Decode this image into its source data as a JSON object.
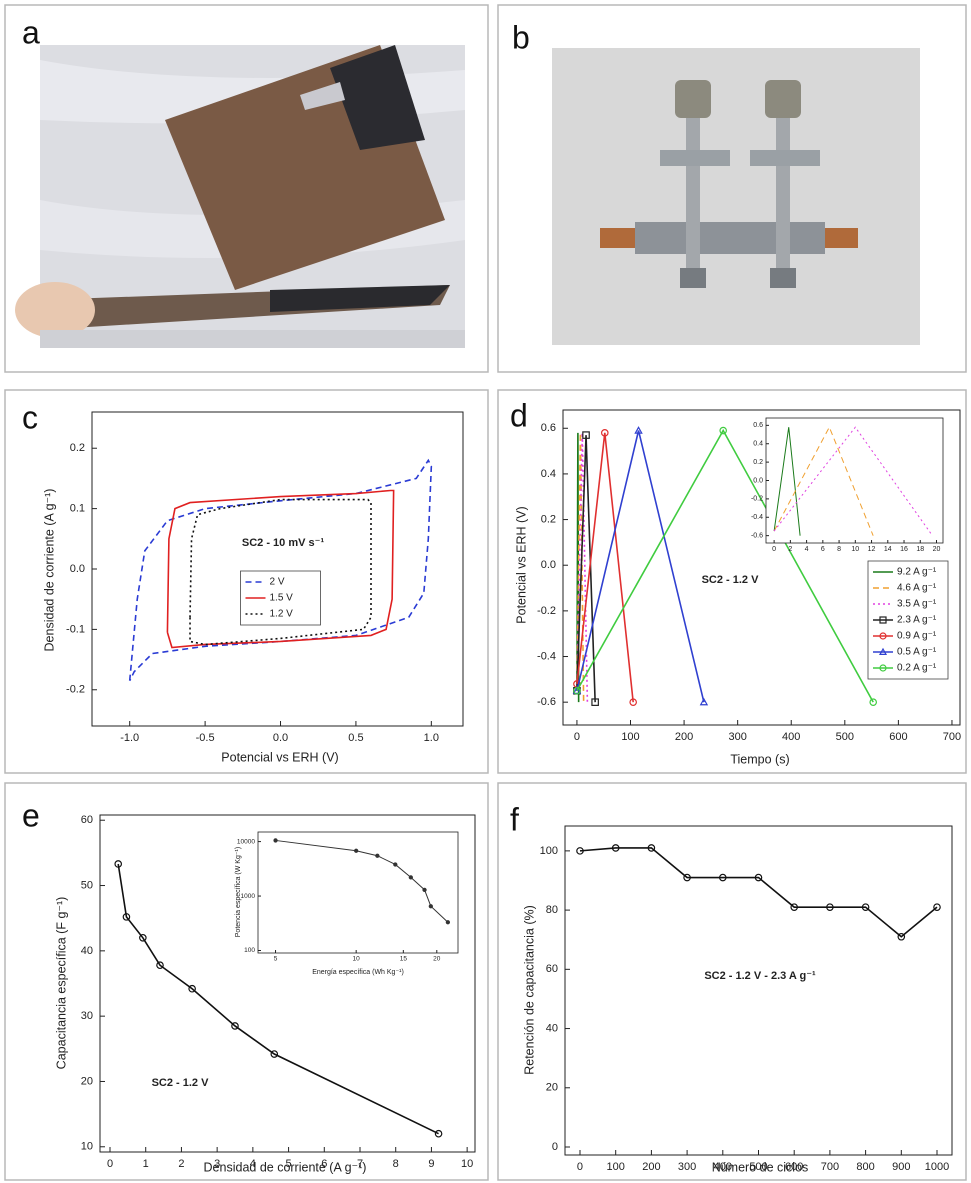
{
  "panel_labels": [
    "a",
    "b",
    "c",
    "d",
    "e",
    "f"
  ],
  "chart_data": [
    {
      "type": "line",
      "xlabel": "Potencial vs ERH (V)",
      "ylabel": "Densidad de corriente (A g⁻¹)",
      "annotation": "SC2 - 10 mV s⁻¹",
      "legend": "center",
      "xlim": [
        -1.25,
        1.21
      ],
      "ylim": [
        -0.26,
        0.26
      ],
      "xticks": [
        {
          "value": -1,
          "label": "-1.0"
        },
        -0.5,
        {
          "value": 0,
          "label": "0.0"
        },
        0.5,
        {
          "value": 1,
          "label": "1.0"
        }
      ],
      "yticks": [
        -0.2,
        -0.1,
        {
          "value": 0,
          "label": "0.0"
        },
        0.1,
        0.2
      ],
      "series": [
        {
          "name": "2 V",
          "color": "#2a3bd4",
          "linestyle": "dashed",
          "x": [
            -1.0,
            -0.95,
            -0.9,
            -0.75,
            -0.5,
            0,
            0.5,
            0.9,
            0.98,
            1.0,
            0.98,
            0.95,
            0.85,
            0.5,
            0,
            -0.5,
            -0.85,
            -0.97,
            -1.0
          ],
          "values": [
            -0.185,
            -0.05,
            0.03,
            0.08,
            0.1,
            0.113,
            0.125,
            0.15,
            0.18,
            0.17,
            0.05,
            -0.04,
            -0.08,
            -0.11,
            -0.12,
            -0.128,
            -0.14,
            -0.17,
            -0.185
          ]
        },
        {
          "name": "1.5 V",
          "color": "#e02020",
          "linestyle": "solid",
          "x": [
            -0.75,
            -0.74,
            -0.7,
            -0.6,
            0,
            0.5,
            0.73,
            0.75,
            0.74,
            0.7,
            0.6,
            0,
            -0.5,
            -0.72,
            -0.75
          ],
          "values": [
            -0.105,
            0.05,
            0.1,
            0.11,
            0.12,
            0.125,
            0.13,
            0.13,
            -0.05,
            -0.1,
            -0.11,
            -0.12,
            -0.125,
            -0.13,
            -0.105
          ]
        },
        {
          "name": "1.2 V",
          "color": "#111111",
          "linestyle": "dotted",
          "x": [
            -0.6,
            -0.59,
            -0.55,
            -0.4,
            0,
            0.58,
            0.6,
            0.6,
            0.55,
            0,
            -0.5,
            -0.6,
            -0.6
          ],
          "values": [
            -0.08,
            0.05,
            0.09,
            0.1,
            0.115,
            0.115,
            0.11,
            -0.08,
            -0.1,
            -0.115,
            -0.125,
            -0.12,
            -0.08
          ]
        }
      ]
    },
    {
      "type": "line",
      "xlabel": "Tiempo (s)",
      "ylabel": "Potencial vs ERH (V)",
      "annotation": "SC2 - 1.2 V",
      "legend": "lower right",
      "xlim": [
        -26,
        715
      ],
      "ylim": [
        -0.7,
        0.68
      ],
      "xticks": [
        0,
        100,
        200,
        300,
        400,
        500,
        600,
        700
      ],
      "yticks": [
        -0.6,
        -0.4,
        -0.2,
        {
          "value": 0,
          "label": "0.0"
        },
        0.2,
        0.4,
        0.6
      ],
      "series": [
        {
          "name": "9.2 A g⁻¹",
          "color": "#1a7a1a",
          "linestyle": "solid",
          "x": [
            0,
            1.8,
            3.2
          ],
          "values": [
            -0.55,
            0.58,
            -0.6
          ]
        },
        {
          "name": "4.6 A g⁻¹",
          "color": "#f0a030",
          "linestyle": "dashed",
          "x": [
            0,
            6.5,
            12.5
          ],
          "values": [
            -0.55,
            0.58,
            -0.6
          ]
        },
        {
          "name": "3.5 A g⁻¹",
          "color": "#e040e0",
          "linestyle": "dotted",
          "x": [
            0,
            10,
            19.5
          ],
          "values": [
            -0.55,
            0.58,
            -0.6
          ]
        },
        {
          "name": "2.3 A g⁻¹",
          "color": "#222222",
          "linestyle": "solid",
          "marker": "square",
          "x": [
            0,
            17,
            34
          ],
          "values": [
            -0.55,
            0.57,
            -0.6
          ]
        },
        {
          "name": "0.9 A g⁻¹",
          "color": "#e03030",
          "linestyle": "solid",
          "marker": "circle",
          "x": [
            0,
            52,
            105
          ],
          "values": [
            -0.52,
            0.58,
            -0.6
          ]
        },
        {
          "name": "0.5 A g⁻¹",
          "color": "#3040d0",
          "linestyle": "solid",
          "marker": "triangle",
          "x": [
            0,
            115,
            237
          ],
          "values": [
            -0.55,
            0.59,
            -0.6
          ]
        },
        {
          "name": "0.2 A g⁻¹",
          "color": "#40cc40",
          "linestyle": "solid",
          "marker": "circle",
          "x": [
            0,
            273,
            553
          ],
          "values": [
            -0.55,
            0.59,
            -0.6
          ]
        }
      ]
    },
    {
      "type": "line",
      "xlim": [
        -1,
        20.8
      ],
      "ylim": [
        -0.68,
        0.68
      ],
      "xticks": [
        0,
        2,
        4,
        6,
        8,
        10,
        12,
        14,
        16,
        18,
        20
      ],
      "yticks": [
        -0.6,
        -0.4,
        -0.2,
        {
          "value": 0,
          "label": "0.0"
        },
        0.2,
        0.4,
        0.6
      ],
      "series": [
        {
          "color": "#1a7a1a",
          "linestyle": "solid",
          "x": [
            0,
            1.8,
            3.2
          ],
          "values": [
            -0.55,
            0.58,
            -0.6
          ]
        },
        {
          "color": "#f0a030",
          "linestyle": "dashed",
          "x": [
            0,
            6.8,
            12.2
          ],
          "values": [
            -0.55,
            0.58,
            -0.6
          ]
        },
        {
          "color": "#e040e0",
          "linestyle": "dotted",
          "x": [
            0,
            10,
            19.5
          ],
          "values": [
            -0.55,
            0.58,
            -0.6
          ]
        }
      ]
    },
    {
      "type": "line",
      "xlabel": "Densidad de corriente (A g⁻¹)",
      "ylabel": "Capacitancia específica (F g⁻¹)",
      "annotation": "SC2 - 1.2 V",
      "xlim": [
        -0.28,
        10.22
      ],
      "ylim": [
        9.2,
        60.8
      ],
      "xticks": [
        0,
        1,
        2,
        3,
        4,
        5,
        6,
        7,
        8,
        9,
        10
      ],
      "yticks": [
        10,
        20,
        30,
        40,
        50,
        60
      ],
      "series": [
        {
          "color": "#111111",
          "linestyle": "solid",
          "marker": "circle",
          "x": [
            0.23,
            0.46,
            0.92,
            1.4,
            2.3,
            3.5,
            4.6,
            9.2
          ],
          "values": [
            53.3,
            45.2,
            42,
            37.8,
            34.2,
            28.5,
            24.2,
            12
          ]
        }
      ]
    },
    {
      "type": "line",
      "xlabel": "Energía específica (Wh Kg⁻¹)",
      "ylabel": "Potencia específica (W Kg⁻¹)",
      "xscale": "log",
      "yscale": "log",
      "xlim": [
        4.3,
        24
      ],
      "ylim": [
        90,
        15000
      ],
      "xticks": [
        5,
        10,
        15,
        20
      ],
      "yticks": [
        100,
        1000,
        10000
      ],
      "series": [
        {
          "color": "#333333",
          "linestyle": "solid",
          "marker": "dot",
          "x": [
            5,
            10,
            12,
            14,
            16,
            18,
            19,
            22
          ],
          "values": [
            10500,
            6800,
            5500,
            3800,
            2200,
            1300,
            650,
            330
          ]
        }
      ]
    },
    {
      "type": "line",
      "xlabel": "Número de ciclos",
      "ylabel": "Retención de capacitancia (%)",
      "annotation": "SC2 - 1.2 V - 2.3 A g⁻¹",
      "xlim": [
        -42,
        1042
      ],
      "ylim": [
        -2.7,
        108.4
      ],
      "xticks": [
        0,
        100,
        200,
        300,
        400,
        500,
        600,
        700,
        800,
        900,
        1000
      ],
      "yticks": [
        0,
        20,
        40,
        60,
        80,
        100
      ],
      "series": [
        {
          "color": "#111111",
          "linestyle": "solid",
          "marker": "circle",
          "x": [
            0,
            100,
            200,
            300,
            400,
            500,
            600,
            700,
            800,
            900,
            1000
          ],
          "values": [
            100,
            101,
            101,
            91,
            91,
            91,
            81,
            81,
            81,
            71,
            81
          ]
        }
      ]
    }
  ]
}
